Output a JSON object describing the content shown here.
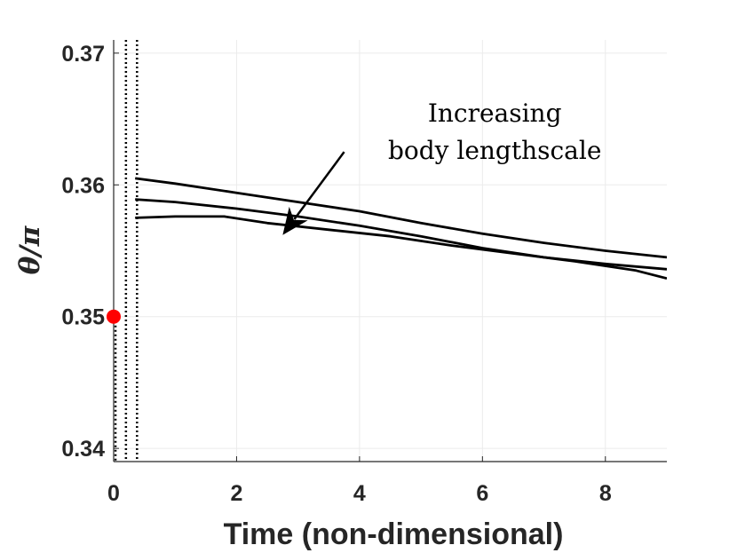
{
  "chart_data": {
    "type": "line",
    "xlabel": "Time (non-dimensional)",
    "ylabel": "θ/π",
    "xlim": [
      0,
      9
    ],
    "ylim": [
      0.339,
      0.371
    ],
    "x_ticks": [
      0,
      2,
      4,
      6,
      8
    ],
    "x_tick_labels": [
      "0",
      "2",
      "4",
      "6",
      "8"
    ],
    "y_ticks": [
      0.34,
      0.35,
      0.36,
      0.37
    ],
    "y_tick_labels": [
      "0.34",
      "0.35",
      "0.36",
      "0.37"
    ],
    "grid": true,
    "series": [
      {
        "name": "curve-1",
        "x": [
          0.35,
          1,
          2,
          3,
          4,
          5,
          6,
          7,
          8,
          9
        ],
        "y": [
          0.3605,
          0.3601,
          0.3594,
          0.3587,
          0.358,
          0.3571,
          0.3563,
          0.3556,
          0.355,
          0.3545
        ]
      },
      {
        "name": "curve-2",
        "x": [
          0.35,
          1,
          2,
          3,
          4,
          5,
          6,
          7,
          8,
          9
        ],
        "y": [
          0.3589,
          0.3587,
          0.3582,
          0.3576,
          0.3569,
          0.3561,
          0.3552,
          0.3545,
          0.354,
          0.3536
        ]
      },
      {
        "name": "curve-3",
        "x": [
          0.35,
          1,
          1.8,
          2.5,
          3.5,
          4.5,
          5.5,
          6.5,
          7.5,
          8.5,
          9
        ],
        "y": [
          0.3575,
          0.3576,
          0.3576,
          0.3571,
          0.3566,
          0.3561,
          0.3554,
          0.3548,
          0.3542,
          0.3535,
          0.3529
        ]
      }
    ],
    "vertical_lines": [
      {
        "name": "dotted-line-1",
        "x": 0.03,
        "style": "dotted",
        "y_range": [
          0.339,
          0.35
        ]
      },
      {
        "name": "dotted-line-2",
        "x": 0.2,
        "style": "dotted",
        "y_range": [
          0.339,
          0.371
        ]
      },
      {
        "name": "dotted-line-3",
        "x": 0.38,
        "style": "dotted",
        "y_range": [
          0.339,
          0.371
        ]
      }
    ],
    "markers": [
      {
        "name": "initial-point",
        "x": 0,
        "y": 0.35,
        "color": "#ff0000"
      }
    ],
    "annotations": [
      {
        "line1": "Increasing",
        "line2": "body lengthscale",
        "x": 6.2,
        "y": 0.3648
      }
    ],
    "arrow": {
      "from": [
        3.75,
        0.3625
      ],
      "to": [
        2.75,
        0.3562
      ]
    },
    "colors": {
      "line": "#000000",
      "grid": "#ebebeb",
      "axis": "#262626",
      "marker": "#ff0000"
    }
  }
}
